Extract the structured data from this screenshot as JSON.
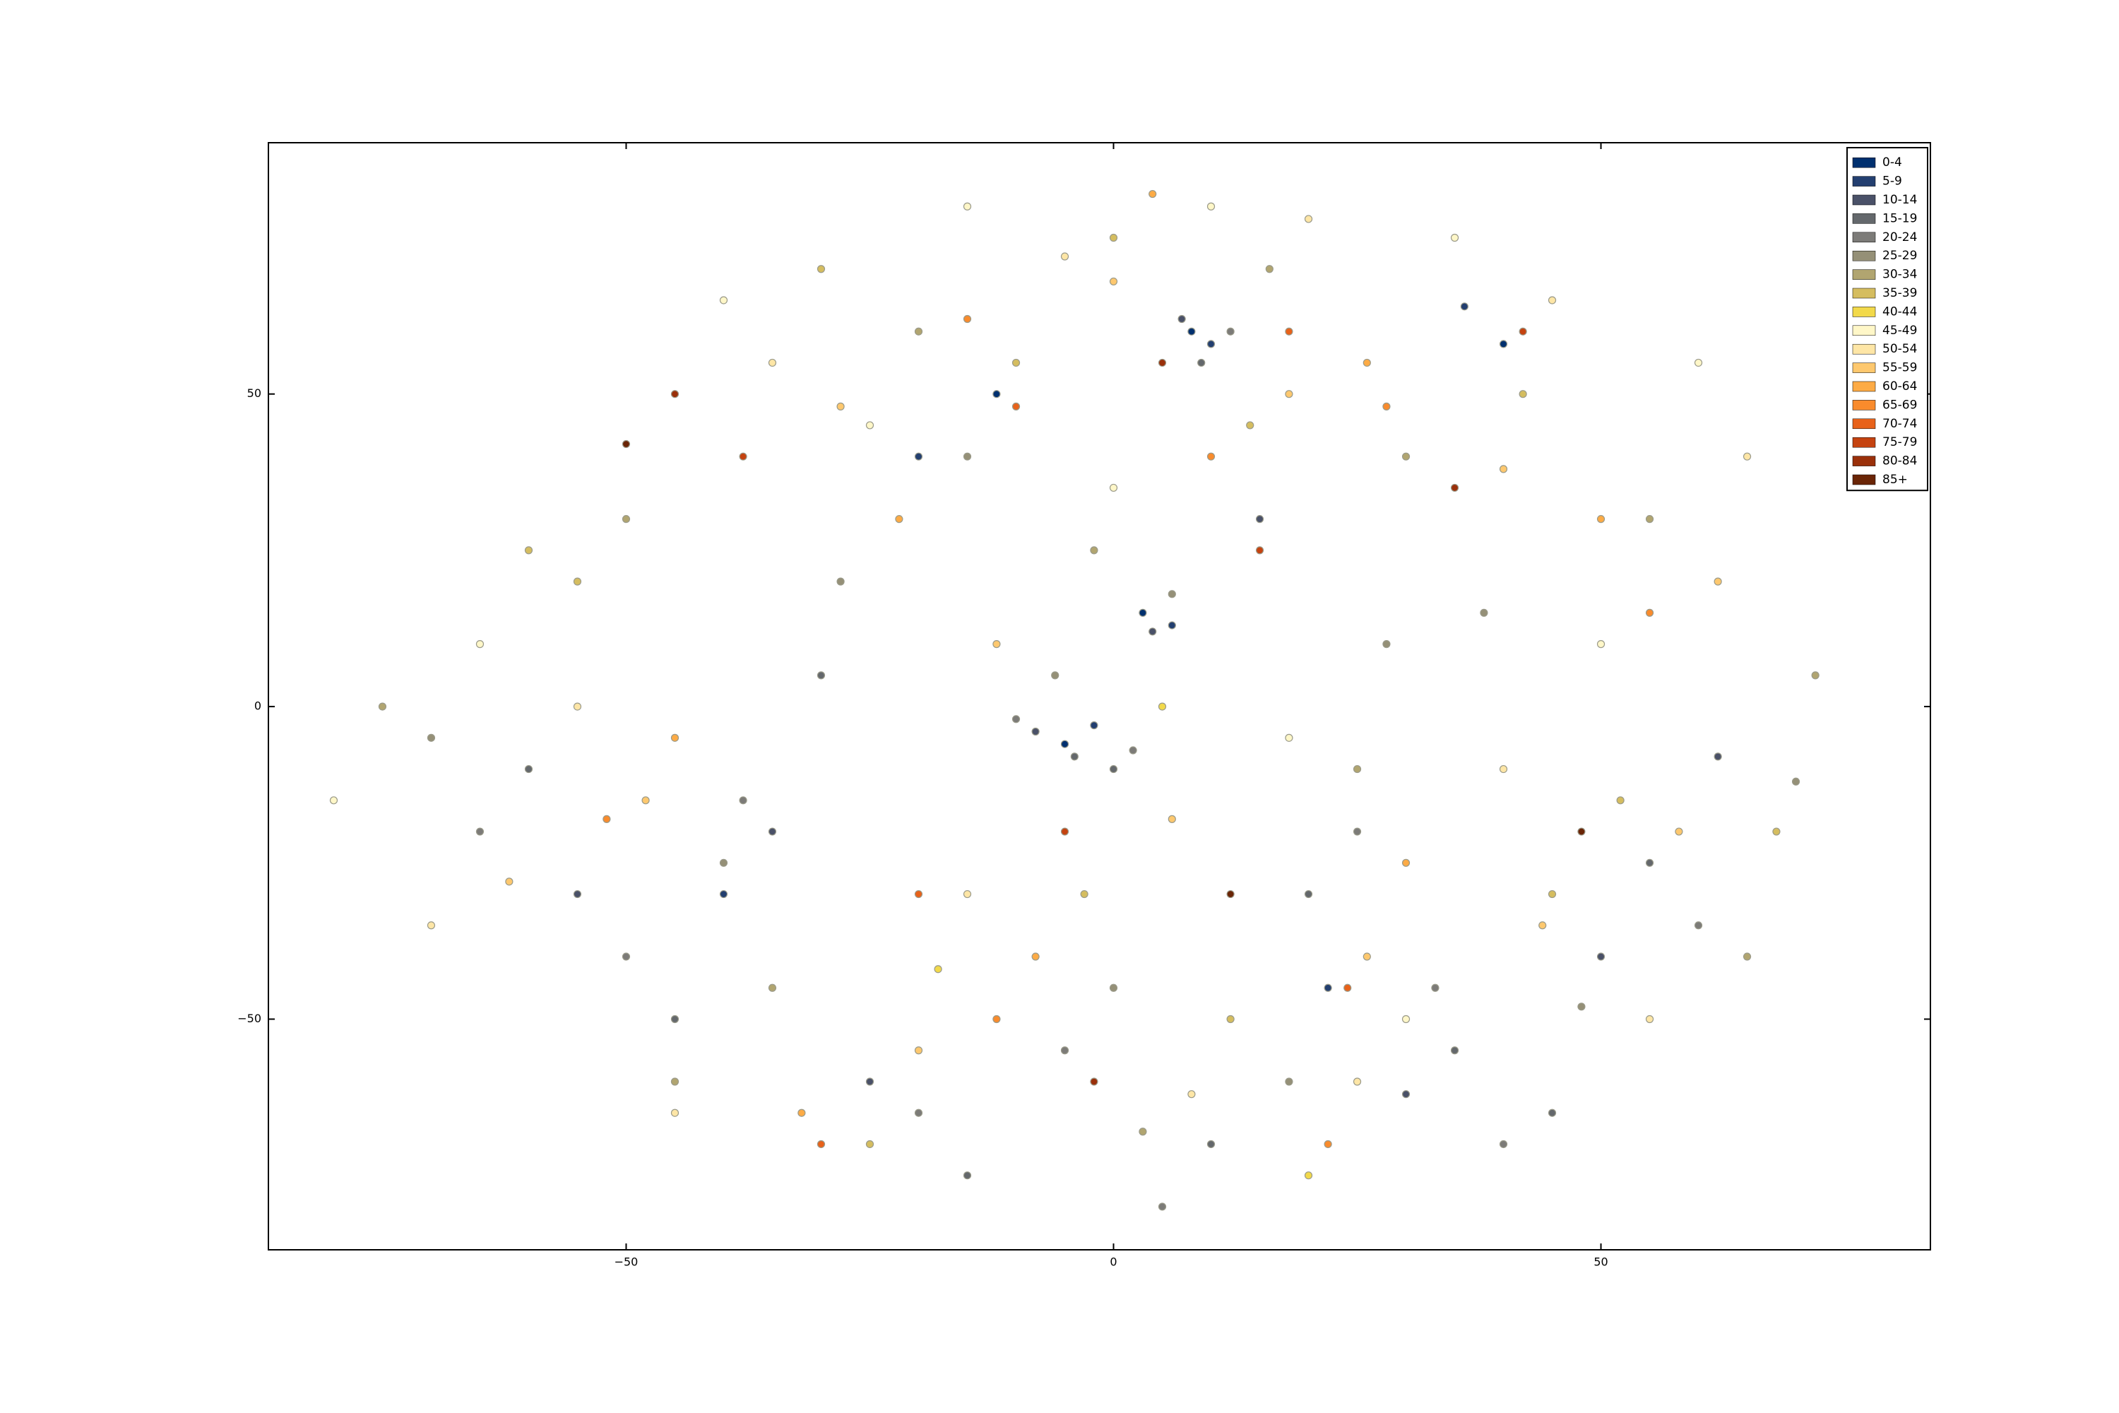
{
  "chart_data": {
    "type": "scatter",
    "xlim": [
      -86.7,
      83.8
    ],
    "ylim": [
      -86.9,
      90.2
    ],
    "xticks": [
      {
        "value": -50,
        "label": "−50"
      },
      0,
      50
    ],
    "yticks": [
      {
        "value": -50,
        "label": "−50"
      },
      0,
      50
    ],
    "legend": "upper right",
    "series": [
      {
        "name": "0-4",
        "color": "#00306f",
        "x": [
          8,
          -5,
          3,
          -12,
          40
        ],
        "y": [
          60,
          -6,
          15,
          50,
          58
        ]
      },
      {
        "name": "5-9",
        "color": "#233f70",
        "x": [
          10,
          -2,
          6,
          -20,
          36,
          -40,
          22
        ],
        "y": [
          58,
          -3,
          13,
          40,
          64,
          -30,
          -45
        ]
      },
      {
        "name": "10-14",
        "color": "#4a5168",
        "x": [
          -8,
          4,
          7,
          15,
          -35,
          -25,
          50,
          -55,
          30,
          62
        ],
        "y": [
          -4,
          12,
          62,
          30,
          -20,
          -60,
          -40,
          -30,
          -62,
          -8
        ]
      },
      {
        "name": "15-19",
        "color": "#64686c",
        "x": [
          -4,
          0,
          9,
          20,
          -45,
          -15,
          35,
          55,
          -60,
          10,
          -30,
          45
        ],
        "y": [
          -8,
          -10,
          55,
          -30,
          -50,
          -75,
          -55,
          -25,
          -10,
          -70,
          5,
          -65
        ]
      },
      {
        "name": "20-24",
        "color": "#7c7b78",
        "x": [
          -10,
          2,
          12,
          25,
          -50,
          -20,
          40,
          60,
          -65,
          5,
          -5,
          33,
          -38
        ],
        "y": [
          -2,
          -7,
          60,
          -20,
          -40,
          -65,
          -70,
          -35,
          -20,
          -80,
          -55,
          -45,
          -15
        ]
      },
      {
        "name": "25-29",
        "color": "#959077",
        "x": [
          -6,
          6,
          -15,
          28,
          -40,
          18,
          48,
          70,
          -70,
          0,
          -28,
          38
        ],
        "y": [
          5,
          18,
          40,
          10,
          -25,
          -60,
          -48,
          -12,
          -5,
          -45,
          20,
          15
        ]
      },
      {
        "name": "30-34",
        "color": "#b1a570",
        "x": [
          -20,
          -2,
          16,
          30,
          -50,
          25,
          55,
          72,
          -75,
          3,
          -35,
          65,
          -45
        ],
        "y": [
          60,
          25,
          70,
          40,
          30,
          -10,
          30,
          5,
          0,
          -68,
          -45,
          -40,
          -60
        ]
      },
      {
        "name": "35-39",
        "color": "#d5bd5f",
        "x": [
          -30,
          -10,
          14,
          42,
          -55,
          12,
          52,
          68,
          -60,
          -3,
          -25,
          45,
          0
        ],
        "y": [
          70,
          55,
          45,
          50,
          20,
          -50,
          -15,
          -20,
          25,
          -30,
          -70,
          -30,
          75
        ]
      },
      {
        "name": "40-44",
        "color": "#f2d94a",
        "x": [
          -18,
          20,
          5
        ],
        "y": [
          -42,
          -75,
          0
        ]
      },
      {
        "name": "45-49",
        "color": "#fff7c8",
        "x": [
          -40,
          -15,
          10,
          35,
          60,
          -65,
          -25,
          18,
          50,
          -80,
          0,
          30
        ],
        "y": [
          65,
          80,
          80,
          75,
          55,
          10,
          45,
          -5,
          10,
          -15,
          35,
          -50
        ]
      },
      {
        "name": "50-54",
        "color": "#fee6a6",
        "x": [
          -35,
          -5,
          20,
          45,
          65,
          -55,
          -15,
          25,
          55,
          -70,
          8,
          -45,
          40
        ],
        "y": [
          55,
          72,
          78,
          65,
          40,
          0,
          -30,
          -60,
          -50,
          -35,
          -62,
          -65,
          -10
        ]
      },
      {
        "name": "55-59",
        "color": "#fec86e",
        "x": [
          -28,
          0,
          18,
          40,
          62,
          -48,
          -12,
          26,
          58,
          -62,
          6,
          -20,
          44
        ],
        "y": [
          48,
          68,
          50,
          38,
          20,
          -15,
          10,
          -40,
          -20,
          -28,
          -18,
          -55,
          -35
        ]
      },
      {
        "name": "60-64",
        "color": "#fdab45",
        "x": [
          -22,
          4,
          26,
          50,
          -45,
          -8,
          30,
          -32
        ],
        "y": [
          30,
          82,
          55,
          30,
          -5,
          -40,
          -25,
          -65
        ]
      },
      {
        "name": "65-69",
        "color": "#f98b2c",
        "x": [
          -15,
          10,
          28,
          55,
          -52,
          -12,
          22
        ],
        "y": [
          62,
          40,
          48,
          15,
          -18,
          -50,
          -70
        ]
      },
      {
        "name": "70-74",
        "color": "#e8621a",
        "x": [
          -10,
          18,
          -30,
          24,
          -20
        ],
        "y": [
          48,
          60,
          -70,
          -45,
          -30
        ]
      },
      {
        "name": "75-79",
        "color": "#c54310",
        "x": [
          -38,
          15,
          42,
          -5
        ],
        "y": [
          40,
          25,
          60,
          -20
        ]
      },
      {
        "name": "80-84",
        "color": "#9a300a",
        "x": [
          -45,
          5,
          35,
          -2
        ],
        "y": [
          50,
          55,
          35,
          -60
        ]
      },
      {
        "name": "85+",
        "color": "#6a2506",
        "x": [
          -50,
          12,
          48
        ],
        "y": [
          42,
          -30,
          -20
        ]
      }
    ]
  }
}
